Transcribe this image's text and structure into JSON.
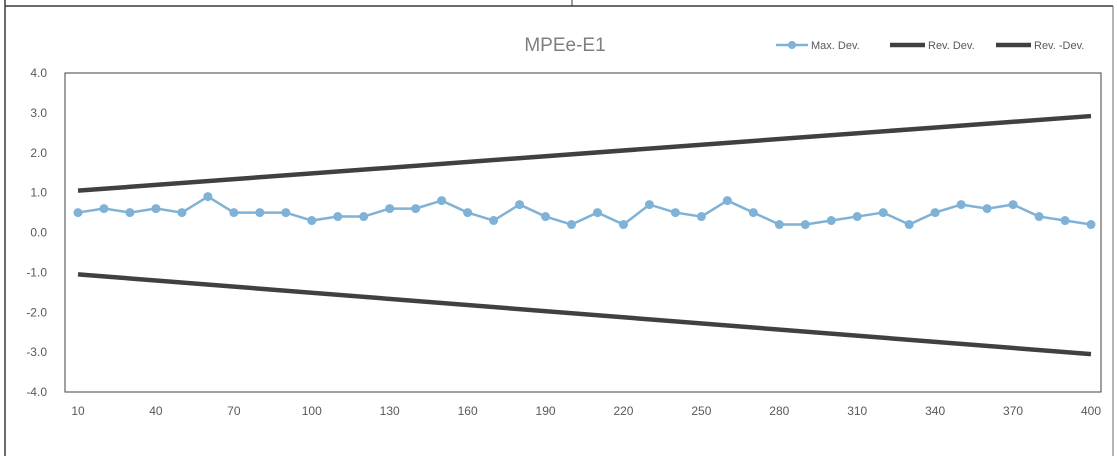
{
  "chart_data": {
    "type": "line",
    "title": "MPEe-E1",
    "x": [
      10,
      20,
      30,
      40,
      50,
      60,
      70,
      80,
      90,
      100,
      110,
      120,
      130,
      140,
      150,
      160,
      170,
      180,
      190,
      200,
      210,
      220,
      230,
      240,
      250,
      260,
      270,
      280,
      290,
      300,
      310,
      320,
      330,
      340,
      350,
      360,
      370,
      380,
      390,
      400
    ],
    "x_tick_labels": [
      "10",
      "40",
      "70",
      "100",
      "130",
      "160",
      "190",
      "220",
      "250",
      "280",
      "310",
      "340",
      "370",
      "400"
    ],
    "y_tick_labels": [
      "4.0",
      "3.0",
      "2.0",
      "1.0",
      "0.0",
      "-1.0",
      "-2.0",
      "-3.0",
      "-4.0"
    ],
    "ylim": [
      -4,
      4
    ],
    "xlabel": "",
    "ylabel": "",
    "legend_position": "top-right",
    "grid": false,
    "series": [
      {
        "name": "Max. Dev.",
        "color": "#7fb2d6",
        "marker": "circle",
        "values": [
          0.5,
          0.6,
          0.5,
          0.6,
          0.5,
          0.9,
          0.5,
          0.5,
          0.5,
          0.3,
          0.4,
          0.4,
          0.6,
          0.6,
          0.8,
          0.5,
          0.3,
          0.7,
          0.4,
          0.2,
          0.5,
          0.2,
          0.7,
          0.5,
          0.4,
          0.8,
          0.5,
          0.2,
          0.2,
          0.3,
          0.4,
          0.5,
          0.2,
          0.5,
          0.7,
          0.6,
          0.7,
          0.4,
          0.3,
          0.2
        ]
      },
      {
        "name": "Rev. Dev.",
        "color": "#404040",
        "marker": "none",
        "values_endpoints": [
          [
            10,
            1.05
          ],
          [
            400,
            2.92
          ]
        ]
      },
      {
        "name": "Rev. -Dev.",
        "color": "#404040",
        "marker": "none",
        "values_endpoints": [
          [
            10,
            -1.05
          ],
          [
            400,
            -3.05
          ]
        ]
      }
    ]
  }
}
